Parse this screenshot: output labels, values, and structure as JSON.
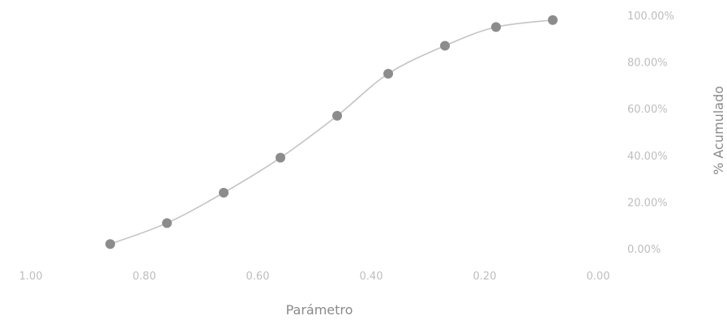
{
  "chart_data": {
    "type": "scatter",
    "title": "",
    "xlabel": "Parámetro",
    "ylabel": "% Acumulado",
    "x_axis_reversed": true,
    "y_axis_position": "right",
    "xlim": [
      0,
      1
    ],
    "ylim": [
      0,
      1
    ],
    "x_ticks": [
      "1.00",
      "0.80",
      "0.60",
      "0.40",
      "0.20",
      "0.00"
    ],
    "y_ticks": [
      "0.00%",
      "20.00%",
      "40.00%",
      "60.00%",
      "80.00%",
      "100.00%"
    ],
    "grid": false,
    "legend": "none",
    "smooth_line": true,
    "series": [
      {
        "x": [
          0.86,
          0.76,
          0.66,
          0.56,
          0.46,
          0.37,
          0.27,
          0.18,
          0.08
        ],
        "y": [
          0.02,
          0.11,
          0.24,
          0.39,
          0.57,
          0.75,
          0.87,
          0.95,
          0.98
        ]
      }
    ],
    "colors": {
      "marker": "#8c8c8c",
      "line": "#c4c4c4"
    }
  }
}
